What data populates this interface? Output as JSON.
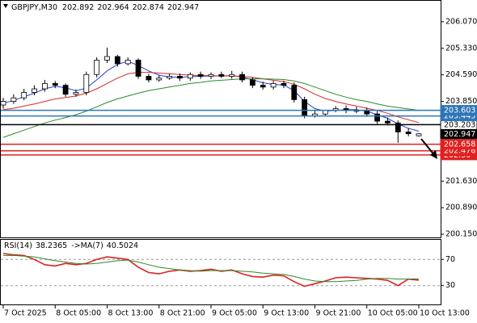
{
  "chart_data": [
    {
      "type": "candlestick",
      "title": "GBPJPY,M30",
      "x": [
        "7 Oct 2025",
        null,
        null,
        null,
        null,
        "8 Oct 05:00",
        null,
        null,
        null,
        null,
        "8 Oct 13:00",
        null,
        null,
        null,
        null,
        "8 Oct 21:00",
        null,
        null,
        null,
        null,
        "9 Oct 05:00",
        null,
        null,
        null,
        null,
        "9 Oct 13:00",
        null,
        null,
        null,
        null,
        "9 Oct 21:00",
        null,
        null,
        null,
        null,
        "10 Oct 05:00",
        null,
        null,
        null,
        null,
        "10 Oct 13:00"
      ],
      "open": [
        203.75,
        203.85,
        203.95,
        204.1,
        204.2,
        204.35,
        204.3,
        204.05,
        204.1,
        204.6,
        205.0,
        205.1,
        204.9,
        205.0,
        204.55,
        204.45,
        204.5,
        204.55,
        204.5,
        204.6,
        204.55,
        204.6,
        204.55,
        204.6,
        204.45,
        204.3,
        204.25,
        204.35,
        204.3,
        203.9,
        203.45,
        203.5,
        203.6,
        203.65,
        203.6,
        203.6,
        203.5,
        203.3,
        203.25,
        203.0,
        202.892
      ],
      "high": [
        203.95,
        204.05,
        204.2,
        204.3,
        204.45,
        204.42,
        204.35,
        204.18,
        204.68,
        205.08,
        205.35,
        205.15,
        205.08,
        205.05,
        204.62,
        204.58,
        204.62,
        204.63,
        204.66,
        204.68,
        204.66,
        204.68,
        204.7,
        204.68,
        204.52,
        204.4,
        204.42,
        204.43,
        204.38,
        203.98,
        203.58,
        203.62,
        203.72,
        203.74,
        203.7,
        203.68,
        203.58,
        203.4,
        203.32,
        203.1,
        202.964
      ],
      "low": [
        203.65,
        203.78,
        203.88,
        204.02,
        204.12,
        204.22,
        203.98,
        203.98,
        204.02,
        204.52,
        204.92,
        204.82,
        204.85,
        204.48,
        204.38,
        204.4,
        204.45,
        204.42,
        204.43,
        204.48,
        204.47,
        204.5,
        204.48,
        204.38,
        204.22,
        204.18,
        204.18,
        204.22,
        203.82,
        203.38,
        203.4,
        203.45,
        203.55,
        203.52,
        203.52,
        203.42,
        203.22,
        203.18,
        202.7,
        202.88,
        202.874
      ],
      "close": [
        203.85,
        203.95,
        204.1,
        204.2,
        204.35,
        204.3,
        204.05,
        204.1,
        204.6,
        205.0,
        205.1,
        204.9,
        205.0,
        204.55,
        204.45,
        204.5,
        204.55,
        204.5,
        204.6,
        204.55,
        204.6,
        204.55,
        204.6,
        204.45,
        204.3,
        204.25,
        204.35,
        204.3,
        203.9,
        203.45,
        203.5,
        203.6,
        203.65,
        203.6,
        203.6,
        203.5,
        203.3,
        203.25,
        203.0,
        202.95,
        202.947
      ],
      "lines": [
        {
          "color": "#1f3fd6",
          "values": [
            203.8,
            203.88,
            203.98,
            204.08,
            204.2,
            204.27,
            204.23,
            204.15,
            204.22,
            204.45,
            204.7,
            204.88,
            204.97,
            204.85,
            204.7,
            204.58,
            204.53,
            204.52,
            204.54,
            204.55,
            204.56,
            204.56,
            204.57,
            204.53,
            204.45,
            204.37,
            204.32,
            204.31,
            204.15,
            203.85,
            203.65,
            203.58,
            203.6,
            203.62,
            203.62,
            203.58,
            203.48,
            203.38,
            203.22,
            203.1,
            203.02
          ]
        },
        {
          "color": "#d42a2a",
          "values": [
            203.62,
            203.66,
            203.72,
            203.78,
            203.85,
            203.92,
            203.96,
            204.0,
            204.08,
            204.2,
            204.35,
            204.5,
            204.62,
            204.66,
            204.66,
            204.64,
            204.62,
            204.6,
            204.58,
            204.57,
            204.57,
            204.56,
            204.56,
            204.55,
            204.52,
            204.48,
            204.44,
            204.4,
            204.33,
            204.2,
            204.05,
            203.93,
            203.85,
            203.78,
            203.72,
            203.66,
            203.6,
            203.52,
            203.42,
            203.34,
            203.26
          ]
        },
        {
          "color": "#2b8a2b",
          "values": [
            202.85,
            202.95,
            203.05,
            203.15,
            203.25,
            203.33,
            203.4,
            203.48,
            203.58,
            203.7,
            203.82,
            203.92,
            204.0,
            204.08,
            204.15,
            204.2,
            204.25,
            204.3,
            204.35,
            204.38,
            204.42,
            204.44,
            204.46,
            204.48,
            204.48,
            204.48,
            204.47,
            204.46,
            204.42,
            204.35,
            204.25,
            204.15,
            204.05,
            203.97,
            203.9,
            203.85,
            203.78,
            203.72,
            203.68,
            203.64,
            203.6
          ]
        }
      ],
      "levels": [
        {
          "value": 203.603,
          "color": "#2e75b6"
        },
        {
          "value": 203.445,
          "color": "#2e75b6"
        },
        {
          "value": 203.203,
          "color": "#000000"
        },
        {
          "value": 202.658,
          "color": "#e02020"
        },
        {
          "value": 202.476,
          "color": "#e02020"
        },
        {
          "value": 202.36,
          "color": "#e02020"
        }
      ],
      "ylim": [
        200.04,
        206.675
      ],
      "yticks": [
        {
          "value": 206.07,
          "label": "206.070"
        },
        {
          "value": 205.33,
          "label": "205.330"
        },
        {
          "value": 204.59,
          "label": "204.590"
        },
        {
          "value": 203.85,
          "label": "203.850"
        },
        {
          "value": 201.63,
          "label": "201.630"
        },
        {
          "value": 200.89,
          "label": "200.890"
        },
        {
          "value": 200.15,
          "label": "200.150"
        }
      ]
    },
    {
      "type": "line",
      "series": [
        {
          "name": "RSI(14)",
          "color": "#e02020",
          "values": [
            79,
            77,
            76,
            70,
            62,
            60,
            64,
            62,
            64,
            70,
            74,
            72,
            70,
            58,
            50,
            48,
            52,
            54,
            52,
            53,
            55,
            52,
            54,
            48,
            44,
            43,
            46,
            45,
            36,
            29,
            33,
            37,
            42,
            43,
            42,
            41,
            40,
            38,
            30,
            40,
            38.2365
          ]
        },
        {
          "name": "->MA(7)",
          "color": "#2b8a2b",
          "values": [
            76,
            76,
            75,
            74,
            71,
            68,
            66,
            64,
            63,
            64,
            66,
            68,
            69,
            66,
            62,
            58,
            56,
            54,
            53,
            52,
            53,
            53,
            53,
            52,
            51,
            49,
            48,
            47,
            44,
            40,
            37,
            36,
            36,
            37,
            38,
            40,
            41,
            41,
            40,
            40,
            40.5024
          ]
        }
      ],
      "ylim": [
        0,
        100
      ],
      "yticks": [
        70,
        30
      ]
    }
  ]
}
